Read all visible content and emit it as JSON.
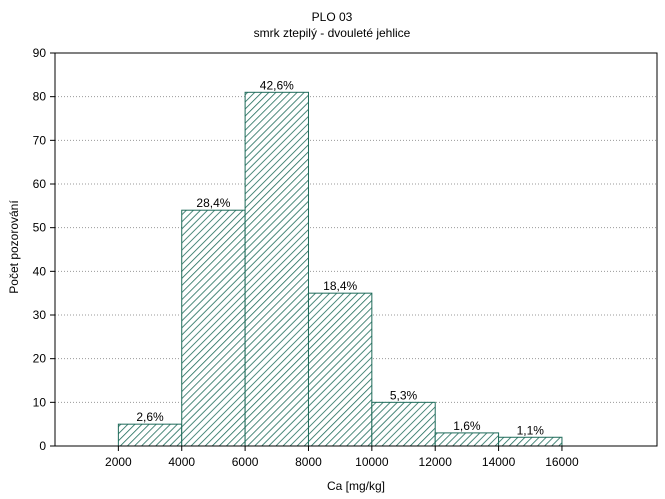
{
  "chart_data": {
    "type": "bar",
    "title": "PLO 03",
    "subtitle": "smrk ztepilý - dvouleté jehlice",
    "xlabel": "Ca [mg/kg]",
    "ylabel": "Počet pozorování",
    "xlim": [
      0,
      19000
    ],
    "ylim": [
      0,
      90
    ],
    "x_ticks": [
      2000,
      4000,
      6000,
      8000,
      10000,
      12000,
      14000,
      16000
    ],
    "x_tick_labels": [
      "2000",
      "4000",
      "6000",
      "8000",
      "10000",
      "12000",
      "14000",
      "16000"
    ],
    "y_ticks": [
      0,
      10,
      20,
      30,
      40,
      50,
      60,
      70,
      80,
      90
    ],
    "y_tick_labels": [
      "0",
      "10",
      "20",
      "30",
      "40",
      "50",
      "60",
      "70",
      "80",
      "90"
    ],
    "bins": [
      {
        "from": 2000,
        "to": 4000,
        "count": 5,
        "label": "2,6%"
      },
      {
        "from": 4000,
        "to": 6000,
        "count": 54,
        "label": "28,4%"
      },
      {
        "from": 6000,
        "to": 8000,
        "count": 81,
        "label": "42,6%"
      },
      {
        "from": 8000,
        "to": 10000,
        "count": 35,
        "label": "18,4%"
      },
      {
        "from": 10000,
        "to": 12000,
        "count": 10,
        "label": "5,3%"
      },
      {
        "from": 12000,
        "to": 14000,
        "count": 3,
        "label": "1,6%"
      },
      {
        "from": 14000,
        "to": 16000,
        "count": 2,
        "label": "1,1%"
      }
    ],
    "grid": "horizontal dotted",
    "bar_fill": "diagonal hatch",
    "colors": {
      "bar_stroke": "#1e6b5a",
      "hatch": "#1e6b5a",
      "grid": "#9a9a9a",
      "axis": "#000000"
    }
  }
}
